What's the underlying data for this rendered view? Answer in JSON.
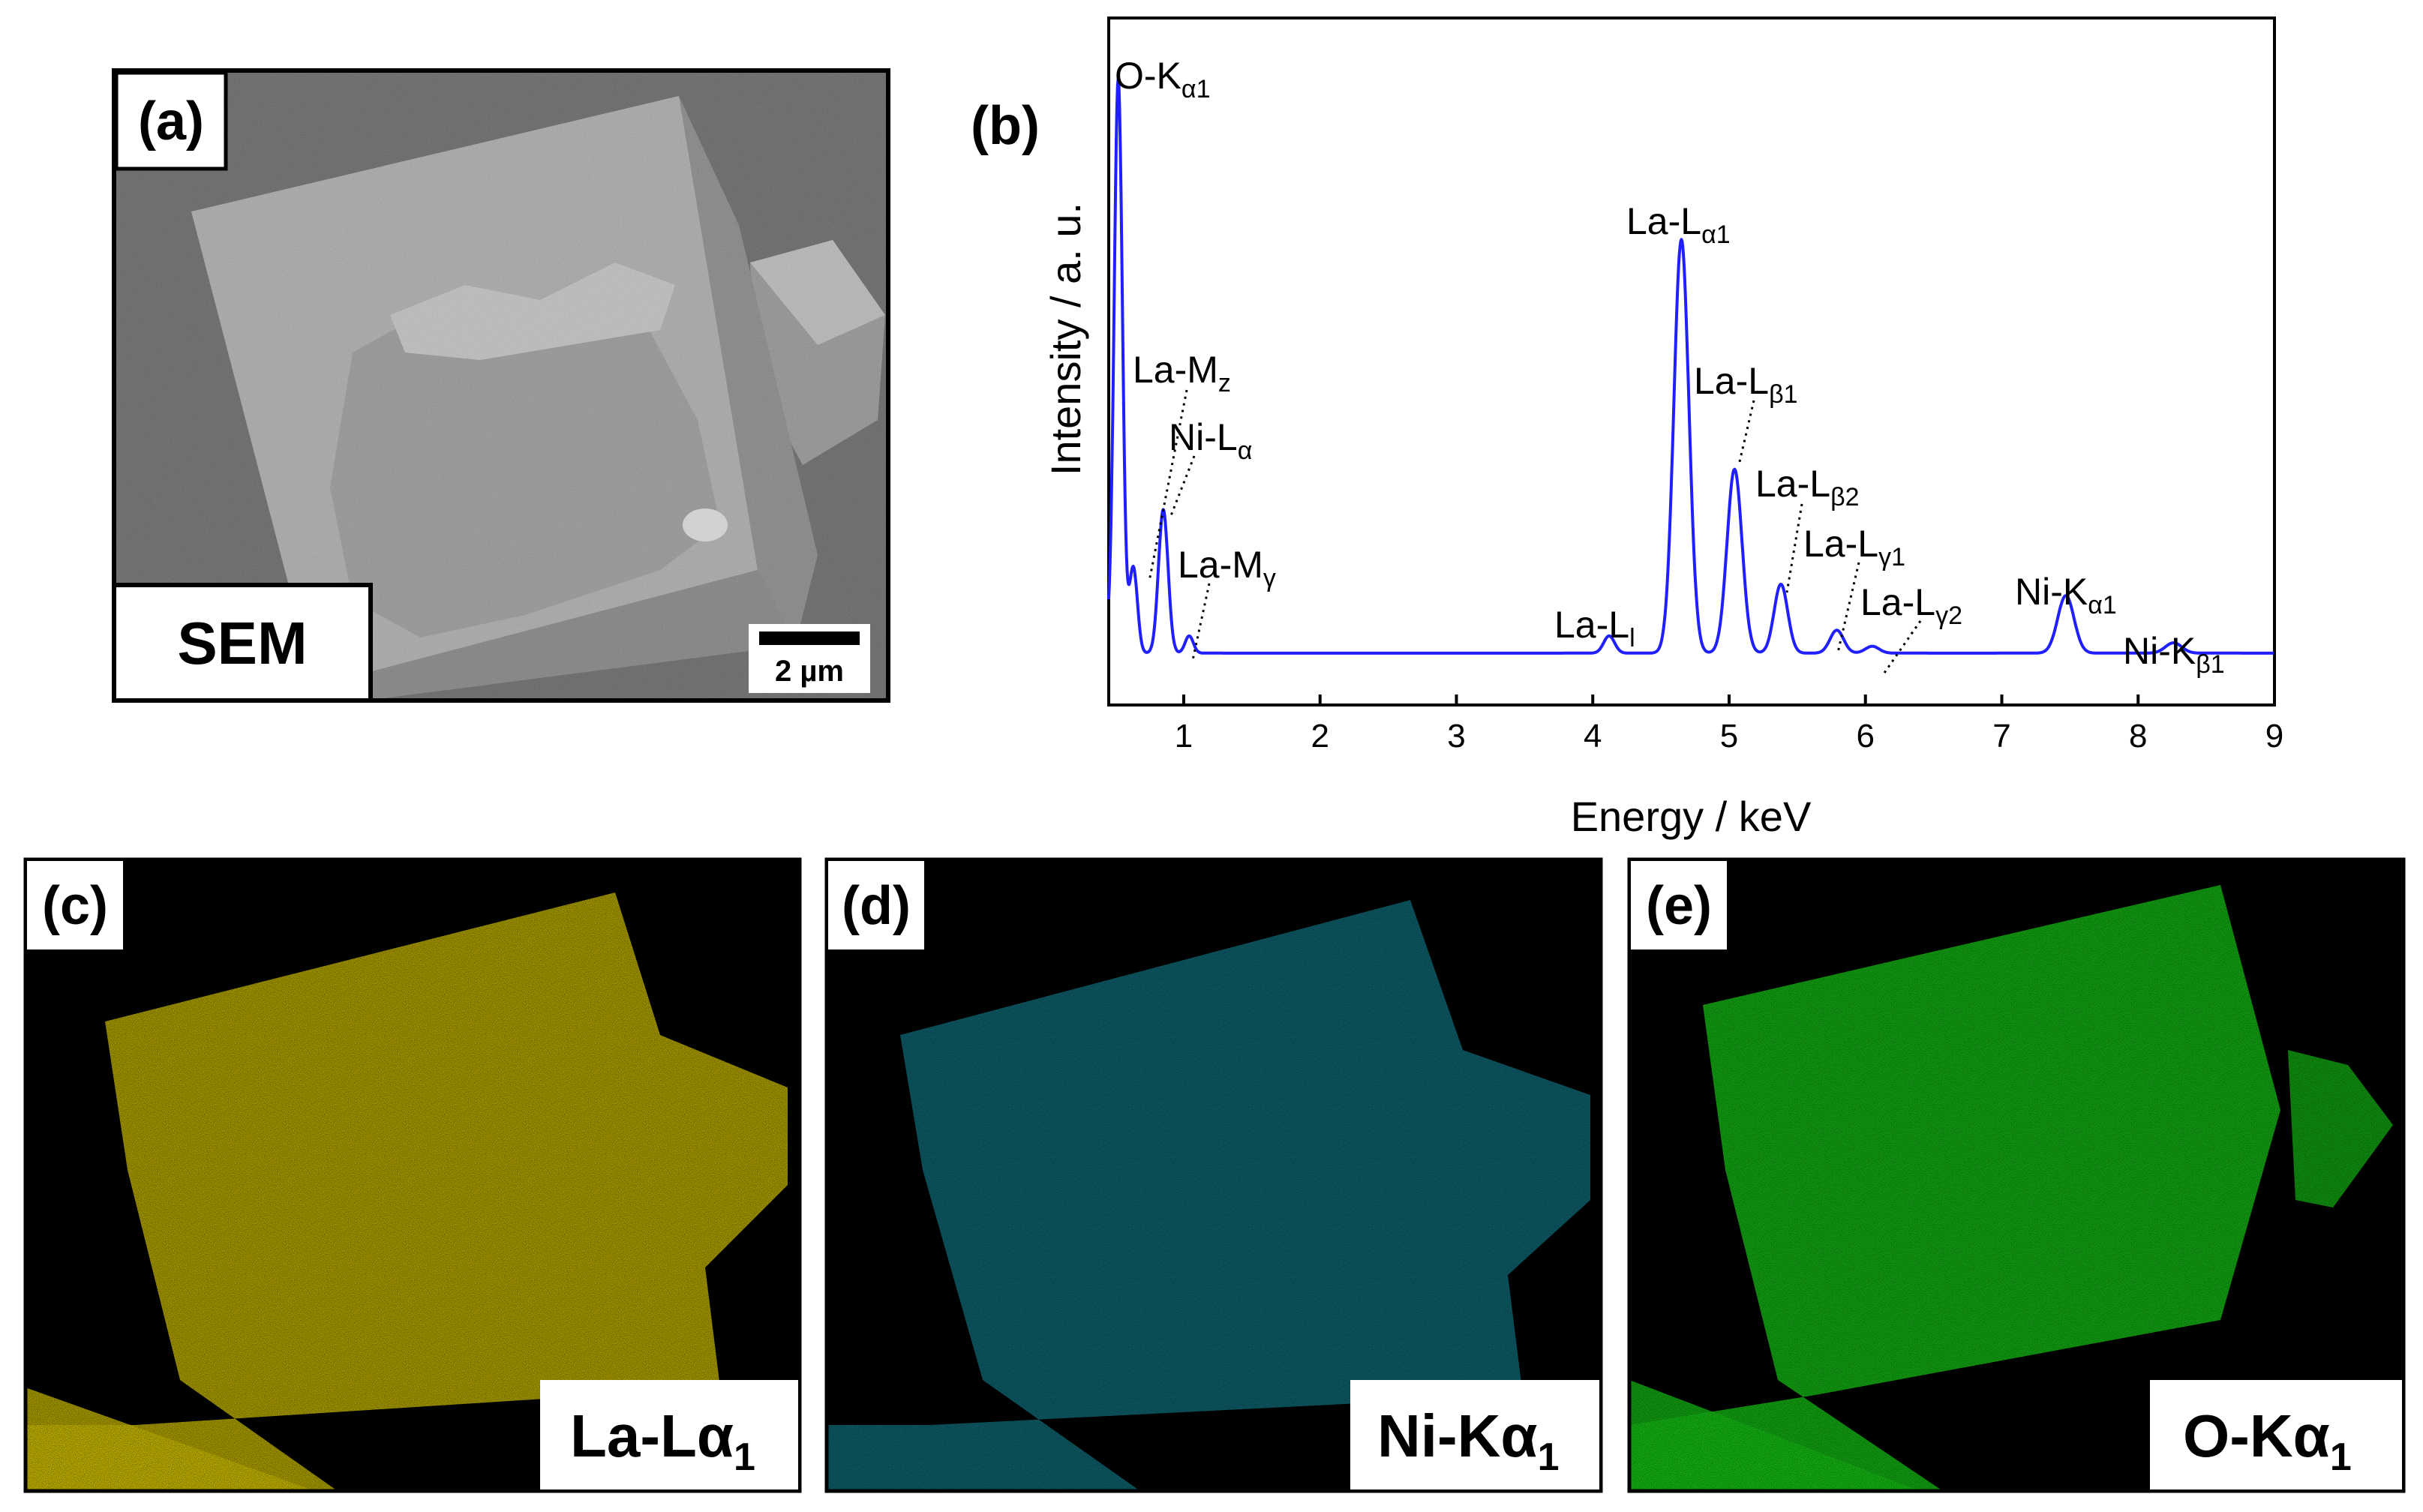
{
  "panels": {
    "a": {
      "letter": "(a)",
      "badge": "SEM",
      "scalebar": "2 µm"
    },
    "b": {
      "letter": "(b)"
    },
    "c": {
      "letter": "(c)",
      "element": "La-Lα",
      "subscript": "1"
    },
    "d": {
      "letter": "(d)",
      "element": "Ni-Kα",
      "subscript": "1"
    },
    "e": {
      "letter": "(e)",
      "element": "O-Kα",
      "subscript": "1"
    }
  },
  "colors": {
    "spectrum": "#1f1fff",
    "la_map": "#e6e000",
    "ni_map": "#18b8c8",
    "o_map": "#22dd22",
    "sem_background": "#5a5a5a",
    "sem_crystal": "#a3a3a3"
  },
  "chart_data": {
    "type": "line",
    "xlabel": "Energy / keV",
    "ylabel": "Intensity / a. u.",
    "xlim": [
      0.45,
      9.0
    ],
    "xticks": [
      1,
      2,
      3,
      4,
      5,
      6,
      7,
      8,
      9
    ],
    "yticks": "none",
    "grid": false,
    "series": [
      {
        "color": "#1f1fff",
        "baseline": 0.025,
        "peaks": [
          {
            "energy": 0.52,
            "height": 1.0,
            "width": 0.03
          },
          {
            "energy": 0.63,
            "height": 0.15,
            "width": 0.03
          },
          {
            "energy": 0.85,
            "height": 0.25,
            "width": 0.035
          },
          {
            "energy": 1.04,
            "height": 0.03,
            "width": 0.03
          },
          {
            "energy": 4.12,
            "height": 0.03,
            "width": 0.04
          },
          {
            "energy": 4.65,
            "height": 0.72,
            "width": 0.055
          },
          {
            "energy": 5.04,
            "height": 0.32,
            "width": 0.055
          },
          {
            "energy": 5.38,
            "height": 0.12,
            "width": 0.05
          },
          {
            "energy": 5.79,
            "height": 0.04,
            "width": 0.05
          },
          {
            "energy": 6.05,
            "height": 0.012,
            "width": 0.05
          },
          {
            "energy": 7.47,
            "height": 0.1,
            "width": 0.06
          },
          {
            "energy": 8.26,
            "height": 0.018,
            "width": 0.06
          }
        ]
      }
    ],
    "annotations": [
      {
        "base": "O-K",
        "sub": "α1",
        "energy": 0.52
      },
      {
        "base": "La-M",
        "sub": "z",
        "energy": 0.63
      },
      {
        "base": "Ni-L",
        "sub": "α",
        "energy": 0.85
      },
      {
        "base": "La-M",
        "sub": "γ",
        "energy": 1.04
      },
      {
        "base": "La-L",
        "sub": "l",
        "energy": 4.12
      },
      {
        "base": "La-L",
        "sub": "α1",
        "energy": 4.65
      },
      {
        "base": "La-L",
        "sub": "β1",
        "energy": 5.04
      },
      {
        "base": "La-L",
        "sub": "β2",
        "energy": 5.38
      },
      {
        "base": "La-L",
        "sub": "γ1",
        "energy": 5.79
      },
      {
        "base": "La-L",
        "sub": "γ2",
        "energy": 6.05
      },
      {
        "base": "Ni-K",
        "sub": "α1",
        "energy": 7.47
      },
      {
        "base": "Ni-K",
        "sub": "β1",
        "energy": 8.26
      }
    ]
  }
}
